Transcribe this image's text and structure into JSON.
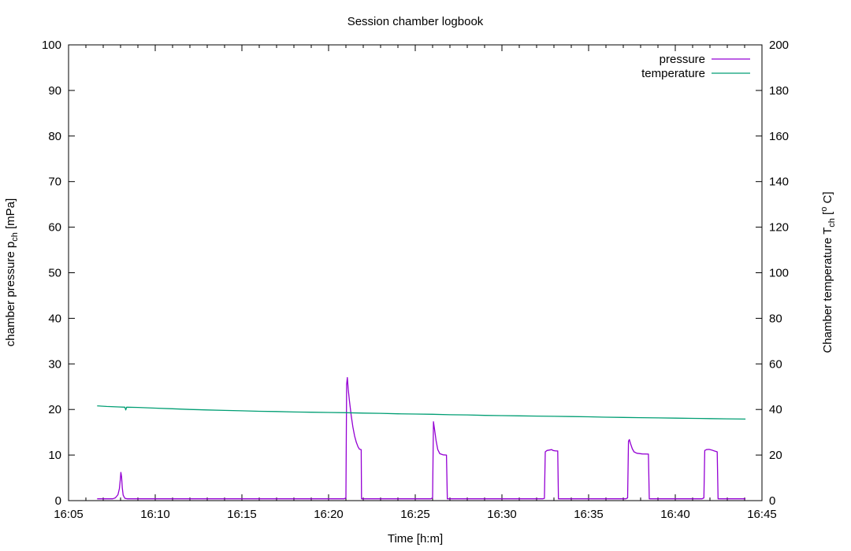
{
  "chart_data": {
    "type": "line",
    "title": "Session chamber logbook",
    "xlabel": "Time [h:m]",
    "ylabel_segments": [
      {
        "t": "chamber pressure p"
      },
      {
        "t": "ch",
        "style": "sub"
      },
      {
        "t": " [mPa]"
      }
    ],
    "y2label_segments": [
      {
        "t": "Chamber temperature T"
      },
      {
        "t": "ch",
        "style": "sub"
      },
      {
        "t": " ["
      },
      {
        "t": "o",
        "style": "sup"
      },
      {
        "t": " C]"
      }
    ],
    "x_axis": {
      "unit": "minutes after 16:00",
      "range": [
        5,
        45
      ],
      "minor_step": 1,
      "ticks": [
        {
          "v": 5,
          "label": "16:05"
        },
        {
          "v": 10,
          "label": "16:10"
        },
        {
          "v": 15,
          "label": "16:15"
        },
        {
          "v": 20,
          "label": "16:20"
        },
        {
          "v": 25,
          "label": "16:25"
        },
        {
          "v": 30,
          "label": "16:30"
        },
        {
          "v": 35,
          "label": "16:35"
        },
        {
          "v": 40,
          "label": "16:40"
        },
        {
          "v": 45,
          "label": "16:45"
        }
      ]
    },
    "y_axis": {
      "range": [
        0,
        100
      ],
      "ticks": [
        0,
        10,
        20,
        30,
        40,
        50,
        60,
        70,
        80,
        90,
        100
      ]
    },
    "y2_axis": {
      "range": [
        0,
        200
      ],
      "ticks": [
        0,
        20,
        40,
        60,
        80,
        100,
        120,
        140,
        160,
        180,
        200
      ]
    },
    "grid": false,
    "legend": {
      "position": "top-right-inside",
      "entries": [
        {
          "label": "pressure",
          "color": "#9400d3"
        },
        {
          "label": "temperature",
          "color": "#009e73"
        }
      ]
    },
    "series": [
      {
        "name": "pressure",
        "axis": "y",
        "color": "#9400d3",
        "points": [
          [
            6.65,
            0.4
          ],
          [
            7.55,
            0.4
          ],
          [
            7.7,
            0.6
          ],
          [
            7.85,
            1.3
          ],
          [
            7.93,
            2.6
          ],
          [
            7.98,
            4.5
          ],
          [
            8.02,
            6.2
          ],
          [
            8.06,
            5.2
          ],
          [
            8.1,
            2.8
          ],
          [
            8.15,
            1.2
          ],
          [
            8.25,
            0.5
          ],
          [
            8.4,
            0.4
          ],
          [
            20.9,
            0.4
          ],
          [
            21.0,
            0.6
          ],
          [
            21.04,
            25.5
          ],
          [
            21.08,
            27.0
          ],
          [
            21.13,
            24.5
          ],
          [
            21.2,
            22.0
          ],
          [
            21.3,
            18.8
          ],
          [
            21.4,
            16.2
          ],
          [
            21.5,
            14.2
          ],
          [
            21.6,
            12.8
          ],
          [
            21.7,
            11.8
          ],
          [
            21.78,
            11.3
          ],
          [
            21.88,
            11.2
          ],
          [
            21.9,
            0.4
          ],
          [
            22.0,
            0.4
          ],
          [
            25.9,
            0.4
          ],
          [
            26.0,
            0.6
          ],
          [
            26.05,
            17.3
          ],
          [
            26.12,
            15.5
          ],
          [
            26.2,
            13.2
          ],
          [
            26.3,
            11.2
          ],
          [
            26.42,
            10.3
          ],
          [
            26.6,
            10.05
          ],
          [
            26.8,
            10.0
          ],
          [
            26.85,
            0.4
          ],
          [
            27.0,
            0.4
          ],
          [
            32.35,
            0.4
          ],
          [
            32.45,
            0.5
          ],
          [
            32.5,
            10.7
          ],
          [
            32.6,
            11.0
          ],
          [
            32.75,
            11.1
          ],
          [
            32.87,
            11.2
          ],
          [
            32.95,
            11.0
          ],
          [
            33.1,
            10.9
          ],
          [
            33.22,
            10.9
          ],
          [
            33.26,
            0.4
          ],
          [
            33.4,
            0.4
          ],
          [
            37.15,
            0.4
          ],
          [
            37.25,
            0.6
          ],
          [
            37.3,
            13.0
          ],
          [
            37.35,
            13.4
          ],
          [
            37.42,
            12.5
          ],
          [
            37.52,
            11.4
          ],
          [
            37.62,
            10.7
          ],
          [
            37.78,
            10.4
          ],
          [
            38.1,
            10.25
          ],
          [
            38.45,
            10.2
          ],
          [
            38.5,
            0.4
          ],
          [
            38.6,
            0.4
          ],
          [
            41.55,
            0.4
          ],
          [
            41.65,
            0.6
          ],
          [
            41.7,
            11.0
          ],
          [
            41.8,
            11.2
          ],
          [
            41.95,
            11.25
          ],
          [
            42.1,
            11.1
          ],
          [
            42.25,
            10.9
          ],
          [
            42.42,
            10.7
          ],
          [
            42.47,
            0.4
          ],
          [
            44.05,
            0.4
          ]
        ]
      },
      {
        "name": "temperature",
        "axis": "y2",
        "color": "#009e73",
        "points": [
          [
            6.65,
            41.6
          ],
          [
            7.2,
            41.3
          ],
          [
            7.9,
            41.1
          ],
          [
            8.25,
            41.0
          ],
          [
            8.3,
            39.8
          ],
          [
            8.35,
            41.0
          ],
          [
            9.0,
            40.9
          ],
          [
            10.0,
            40.6
          ],
          [
            11.0,
            40.3
          ],
          [
            12.0,
            40.0
          ],
          [
            13.0,
            39.8
          ],
          [
            14.0,
            39.6
          ],
          [
            15.0,
            39.4
          ],
          [
            16.0,
            39.2
          ],
          [
            17.0,
            39.1
          ],
          [
            18.0,
            38.9
          ],
          [
            19.0,
            38.8
          ],
          [
            20.0,
            38.7
          ],
          [
            21.0,
            38.6
          ],
          [
            22.0,
            38.4
          ],
          [
            23.0,
            38.3
          ],
          [
            24.0,
            38.1
          ],
          [
            25.0,
            38.0
          ],
          [
            26.0,
            37.9
          ],
          [
            27.0,
            37.7
          ],
          [
            28.0,
            37.6
          ],
          [
            29.0,
            37.4
          ],
          [
            30.0,
            37.3
          ],
          [
            31.0,
            37.2
          ],
          [
            32.0,
            37.1
          ],
          [
            33.0,
            37.0
          ],
          [
            34.0,
            36.9
          ],
          [
            35.0,
            36.8
          ],
          [
            36.0,
            36.6
          ],
          [
            37.0,
            36.5
          ],
          [
            38.0,
            36.4
          ],
          [
            39.0,
            36.3
          ],
          [
            40.0,
            36.2
          ],
          [
            41.0,
            36.1
          ],
          [
            42.0,
            36.0
          ],
          [
            43.0,
            35.9
          ],
          [
            44.05,
            35.8
          ]
        ]
      }
    ]
  }
}
